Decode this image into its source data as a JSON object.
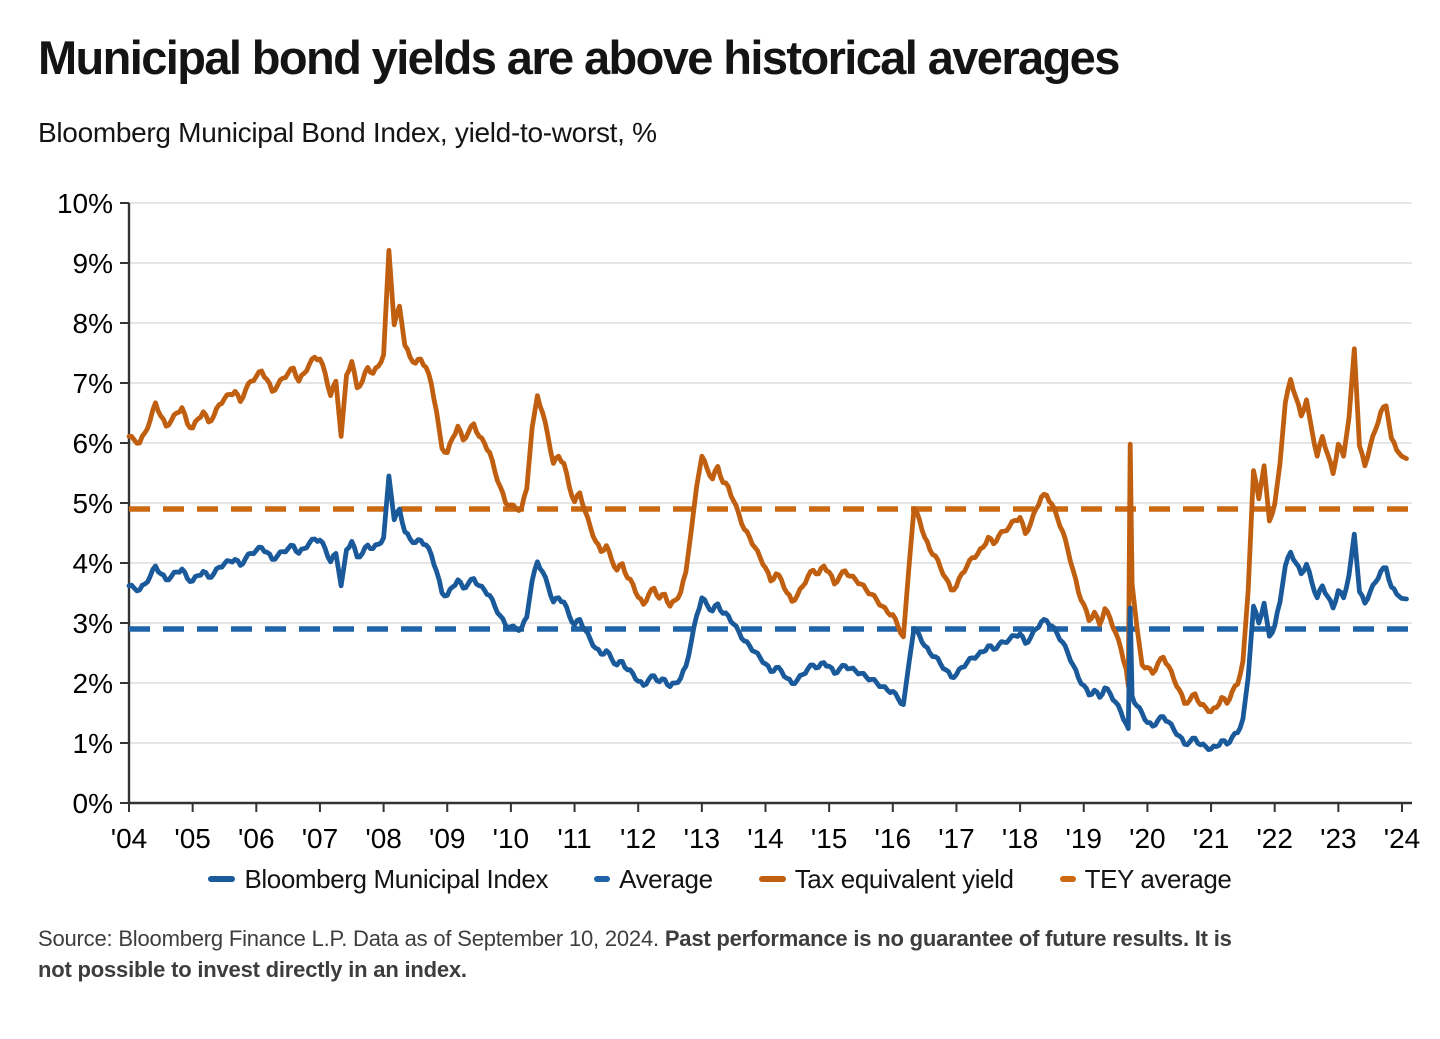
{
  "header": {
    "title": "Municipal bond yields are above historical averages",
    "subtitle": "Bloomberg Municipal Bond Index, yield-to-worst, %"
  },
  "source": {
    "regular": "Source: Bloomberg Finance L.P. Data as of September 10, 2024. ",
    "bold_line1": "Past performance is no guarantee of future results. It is",
    "bold_line2": "not possible to invest directly in an index."
  },
  "colors": {
    "blue": "#1A5A9B",
    "blue_avg": "#1F64A8",
    "orange": "#C05F10",
    "orange_avg": "#CC6A12",
    "grid": "#d8d8d8",
    "axis": "#333333",
    "tick_text": "#000000"
  },
  "legend": [
    {
      "label": "Bloomberg Municipal Index",
      "color_key": "blue",
      "marker": "solid"
    },
    {
      "label": "Average",
      "color_key": "blue_avg",
      "marker": "dash"
    },
    {
      "label": "Tax equivalent yield",
      "color_key": "orange",
      "marker": "solid"
    },
    {
      "label": "TEY average",
      "color_key": "orange_avg",
      "marker": "dash"
    }
  ],
  "chart_data": {
    "type": "line",
    "title": "Municipal bond yields are above historical averages",
    "subtitle": "Bloomberg Municipal Bond Index, yield-to-worst, %",
    "xlabel": "",
    "ylabel": "yield-to-worst, %",
    "ylim": [
      0,
      10
    ],
    "yticks": [
      0,
      1,
      2,
      3,
      4,
      5,
      6,
      7,
      8,
      9,
      10
    ],
    "ytick_suffix": "%",
    "grid": "horizontal",
    "legend_position": "bottom",
    "xticks": {
      "values": [
        2004,
        2005,
        2006,
        2007,
        2008,
        2009,
        2010,
        2011,
        2012,
        2013,
        2014,
        2015,
        2016,
        2017,
        2018,
        2019,
        2020,
        2021,
        2022,
        2023,
        2024
      ],
      "labels": [
        "'04",
        "'05",
        "'06",
        "'07",
        "'08",
        "'09",
        "'10",
        "'11",
        "'12",
        "'13",
        "'14",
        "'15",
        "'16",
        "'17",
        "'18",
        "'19",
        "'20",
        "'21",
        "'22",
        "'23",
        "'24"
      ]
    },
    "x": [
      2004.0,
      2004.083,
      2004.167,
      2004.25,
      2004.333,
      2004.417,
      2004.5,
      2004.583,
      2004.667,
      2004.75,
      2004.833,
      2004.917,
      2005.0,
      2005.083,
      2005.167,
      2005.25,
      2005.333,
      2005.417,
      2005.5,
      2005.583,
      2005.667,
      2005.75,
      2005.833,
      2005.917,
      2006.0,
      2006.083,
      2006.167,
      2006.25,
      2006.333,
      2006.417,
      2006.5,
      2006.583,
      2006.667,
      2006.75,
      2006.833,
      2006.917,
      2007.0,
      2007.083,
      2007.167,
      2007.25,
      2007.333,
      2007.417,
      2007.5,
      2007.583,
      2007.667,
      2007.75,
      2007.833,
      2007.917,
      2008.0,
      2008.083,
      2008.167,
      2008.25,
      2008.333,
      2008.417,
      2008.5,
      2008.583,
      2008.667,
      2008.75,
      2008.833,
      2008.917,
      2009.0,
      2009.083,
      2009.167,
      2009.25,
      2009.333,
      2009.417,
      2009.5,
      2009.583,
      2009.667,
      2009.75,
      2009.833,
      2009.917,
      2010.0,
      2010.083,
      2010.167,
      2010.25,
      2010.333,
      2010.417,
      2010.5,
      2010.583,
      2010.667,
      2010.75,
      2010.833,
      2010.917,
      2011.0,
      2011.083,
      2011.167,
      2011.25,
      2011.333,
      2011.417,
      2011.5,
      2011.583,
      2011.667,
      2011.75,
      2011.833,
      2011.917,
      2012.0,
      2012.083,
      2012.167,
      2012.25,
      2012.333,
      2012.417,
      2012.5,
      2012.583,
      2012.667,
      2012.75,
      2012.833,
      2012.917,
      2013.0,
      2013.083,
      2013.167,
      2013.25,
      2013.333,
      2013.417,
      2013.5,
      2013.583,
      2013.667,
      2013.75,
      2013.833,
      2013.917,
      2014.0,
      2014.083,
      2014.167,
      2014.25,
      2014.333,
      2014.417,
      2014.5,
      2014.583,
      2014.667,
      2014.75,
      2014.833,
      2014.917,
      2015.0,
      2015.083,
      2015.167,
      2015.25,
      2015.333,
      2015.417,
      2015.5,
      2015.583,
      2015.667,
      2015.75,
      2015.833,
      2015.917,
      2016.0,
      2016.083,
      2016.167,
      2016.25,
      2016.333,
      2016.417,
      2016.5,
      2016.583,
      2016.667,
      2016.75,
      2016.833,
      2016.917,
      2017.0,
      2017.083,
      2017.167,
      2017.25,
      2017.333,
      2017.417,
      2017.5,
      2017.583,
      2017.667,
      2017.75,
      2017.833,
      2017.917,
      2018.0,
      2018.083,
      2018.167,
      2018.25,
      2018.333,
      2018.417,
      2018.5,
      2018.583,
      2018.667,
      2018.75,
      2018.833,
      2018.917,
      2019.0,
      2019.083,
      2019.167,
      2019.25,
      2019.333,
      2019.417,
      2019.5,
      2019.583,
      2019.667,
      2019.7,
      2019.73,
      2019.76,
      2019.833,
      2019.917,
      2020.0,
      2020.083,
      2020.167,
      2020.25,
      2020.333,
      2020.417,
      2020.5,
      2020.583,
      2020.667,
      2020.75,
      2020.833,
      2020.917,
      2021.0,
      2021.083,
      2021.167,
      2021.25,
      2021.333,
      2021.417,
      2021.5,
      2021.583,
      2021.667,
      2021.75,
      2021.833,
      2021.917,
      2022.0,
      2022.083,
      2022.167,
      2022.25,
      2022.333,
      2022.417,
      2022.5,
      2022.583,
      2022.667,
      2022.75,
      2022.833,
      2022.917,
      2023.0,
      2023.083,
      2023.167,
      2023.25,
      2023.333,
      2023.417,
      2023.5,
      2023.583,
      2023.667,
      2023.75,
      2023.833,
      2023.917,
      2024.07
    ],
    "series": [
      {
        "name": "Bloomberg Municipal Index",
        "color_key": "blue",
        "style": "solid",
        "values": [
          3.62,
          3.58,
          3.55,
          3.65,
          3.78,
          3.95,
          3.82,
          3.72,
          3.78,
          3.85,
          3.9,
          3.74,
          3.7,
          3.79,
          3.86,
          3.76,
          3.82,
          3.93,
          3.99,
          4.03,
          4.06,
          3.96,
          4.08,
          4.16,
          4.21,
          4.26,
          4.18,
          4.06,
          4.12,
          4.19,
          4.24,
          4.29,
          4.16,
          4.24,
          4.33,
          4.4,
          4.38,
          4.24,
          4.02,
          4.16,
          3.62,
          4.22,
          4.36,
          4.1,
          4.16,
          4.3,
          4.24,
          4.31,
          4.42,
          5.45,
          4.72,
          4.9,
          4.52,
          4.4,
          4.34,
          4.38,
          4.3,
          4.14,
          3.86,
          3.5,
          3.46,
          3.6,
          3.72,
          3.58,
          3.66,
          3.74,
          3.62,
          3.55,
          3.46,
          3.27,
          3.12,
          2.96,
          2.94,
          2.9,
          2.91,
          3.1,
          3.7,
          4.02,
          3.85,
          3.62,
          3.35,
          3.42,
          3.35,
          3.12,
          2.97,
          3.06,
          2.88,
          2.72,
          2.58,
          2.48,
          2.54,
          2.4,
          2.3,
          2.36,
          2.22,
          2.16,
          2.03,
          1.96,
          2.06,
          2.12,
          2.02,
          2.06,
          1.94,
          2.0,
          2.08,
          2.28,
          2.68,
          3.12,
          3.42,
          3.3,
          3.2,
          3.32,
          3.16,
          3.12,
          2.98,
          2.85,
          2.7,
          2.62,
          2.52,
          2.42,
          2.32,
          2.19,
          2.26,
          2.2,
          2.08,
          1.99,
          2.05,
          2.14,
          2.24,
          2.3,
          2.26,
          2.34,
          2.28,
          2.16,
          2.24,
          2.29,
          2.24,
          2.2,
          2.16,
          2.1,
          2.06,
          2.0,
          1.94,
          1.88,
          1.86,
          1.74,
          1.64,
          2.3,
          2.91,
          2.8,
          2.62,
          2.5,
          2.44,
          2.32,
          2.22,
          2.1,
          2.14,
          2.26,
          2.34,
          2.42,
          2.46,
          2.52,
          2.62,
          2.56,
          2.64,
          2.68,
          2.73,
          2.79,
          2.82,
          2.66,
          2.76,
          2.9,
          3.02,
          3.04,
          2.95,
          2.82,
          2.68,
          2.5,
          2.3,
          2.08,
          1.96,
          1.8,
          1.88,
          1.76,
          1.92,
          1.82,
          1.68,
          1.52,
          1.32,
          1.24,
          3.25,
          1.78,
          1.62,
          1.5,
          1.34,
          1.28,
          1.38,
          1.44,
          1.35,
          1.22,
          1.12,
          0.98,
          1.02,
          1.08,
          0.97,
          0.94,
          0.9,
          0.94,
          1.04,
          0.98,
          1.1,
          1.17,
          1.4,
          2.1,
          3.28,
          3.0,
          3.33,
          2.78,
          2.95,
          3.35,
          3.95,
          4.18,
          4.0,
          3.82,
          3.98,
          3.68,
          3.42,
          3.62,
          3.44,
          3.25,
          3.54,
          3.42,
          3.8,
          4.48,
          3.52,
          3.33,
          3.52,
          3.68,
          3.86,
          3.92,
          3.6,
          3.48,
          3.4
        ]
      },
      {
        "name": "Average",
        "color_key": "blue_avg",
        "style": "dashed",
        "constant": 2.9
      },
      {
        "name": "Tax equivalent yield",
        "color_key": "orange",
        "style": "solid",
        "values": [
          6.11,
          6.05,
          6.0,
          6.17,
          6.38,
          6.67,
          6.45,
          6.28,
          6.38,
          6.5,
          6.59,
          6.32,
          6.25,
          6.4,
          6.52,
          6.35,
          6.45,
          6.64,
          6.74,
          6.81,
          6.86,
          6.69,
          6.89,
          7.03,
          7.11,
          7.2,
          7.06,
          6.86,
          6.96,
          7.08,
          7.16,
          7.25,
          7.03,
          7.16,
          7.31,
          7.43,
          7.4,
          7.16,
          6.79,
          7.03,
          6.11,
          7.13,
          7.36,
          6.92,
          7.03,
          7.26,
          7.16,
          7.28,
          7.47,
          9.21,
          7.97,
          8.28,
          7.63,
          7.43,
          7.33,
          7.4,
          7.26,
          6.99,
          6.52,
          5.91,
          5.84,
          6.08,
          6.28,
          6.05,
          6.18,
          6.32,
          6.11,
          6.0,
          5.84,
          5.52,
          5.27,
          5.0,
          4.97,
          4.9,
          4.91,
          5.24,
          6.25,
          6.79,
          6.5,
          6.11,
          5.66,
          5.78,
          5.66,
          5.27,
          5.02,
          5.17,
          4.86,
          4.59,
          4.36,
          4.19,
          4.29,
          4.05,
          3.88,
          3.99,
          3.75,
          3.65,
          3.43,
          3.31,
          3.48,
          3.58,
          3.41,
          3.48,
          3.28,
          3.38,
          3.51,
          3.85,
          4.53,
          5.27,
          5.78,
          5.57,
          5.4,
          5.61,
          5.34,
          5.27,
          5.03,
          4.81,
          4.56,
          4.43,
          4.26,
          4.09,
          3.92,
          3.7,
          3.82,
          3.72,
          3.51,
          3.36,
          3.46,
          3.61,
          3.78,
          3.88,
          3.82,
          3.95,
          3.85,
          3.65,
          3.78,
          3.87,
          3.78,
          3.72,
          3.65,
          3.55,
          3.48,
          3.38,
          3.28,
          3.18,
          3.14,
          2.94,
          2.77,
          3.88,
          4.91,
          4.73,
          4.43,
          4.22,
          4.12,
          3.92,
          3.75,
          3.55,
          3.61,
          3.82,
          3.95,
          4.09,
          4.15,
          4.26,
          4.43,
          4.32,
          4.46,
          4.53,
          4.61,
          4.71,
          4.76,
          4.49,
          4.66,
          4.9,
          5.1,
          5.13,
          4.98,
          4.76,
          4.53,
          4.22,
          3.88,
          3.51,
          3.31,
          3.04,
          3.18,
          2.97,
          3.24,
          3.07,
          2.84,
          2.57,
          2.23,
          1.95,
          5.98,
          3.65,
          2.95,
          2.3,
          2.26,
          2.16,
          2.33,
          2.43,
          2.28,
          2.06,
          1.89,
          1.66,
          1.72,
          1.82,
          1.64,
          1.59,
          1.52,
          1.59,
          1.76,
          1.66,
          1.86,
          1.98,
          2.36,
          3.55,
          5.54,
          5.07,
          5.62,
          4.7,
          4.98,
          5.66,
          6.67,
          7.06,
          6.76,
          6.45,
          6.72,
          6.22,
          5.78,
          6.11,
          5.81,
          5.49,
          5.98,
          5.78,
          6.42,
          7.57,
          5.95,
          5.62,
          5.95,
          6.22,
          6.52,
          6.62,
          6.08,
          5.88,
          5.74
        ]
      },
      {
        "name": "TEY average",
        "color_key": "orange_avg",
        "style": "dashed",
        "constant": 4.9
      }
    ]
  }
}
